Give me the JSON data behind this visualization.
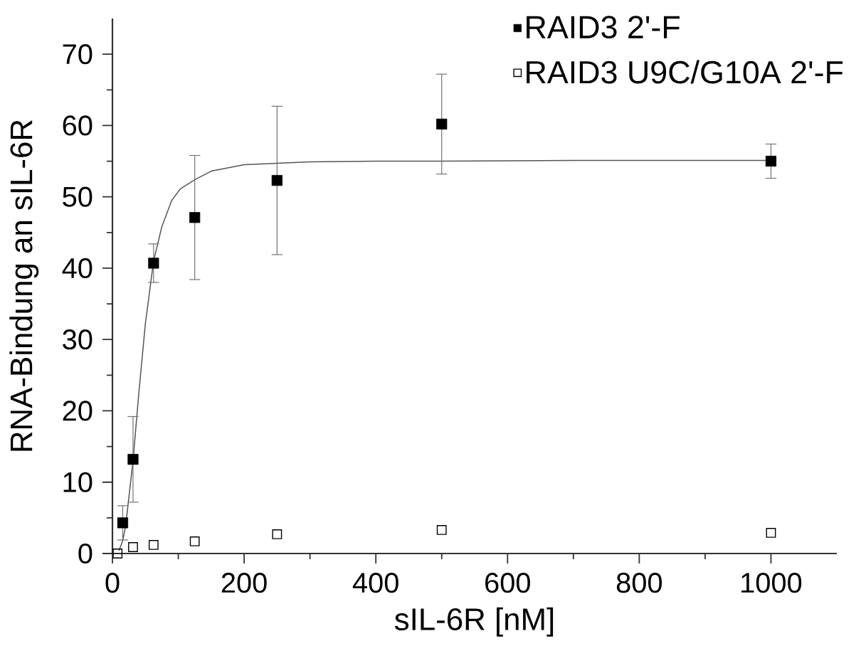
{
  "chart_data": {
    "type": "scatter",
    "xlabel": "sIL-6R [nM]",
    "ylabel": "RNA-Bindung an sIL-6R",
    "xlim": [
      0,
      1100
    ],
    "xticks": [
      0,
      200,
      400,
      600,
      800,
      1000
    ],
    "ylim": [
      0,
      75
    ],
    "yticks": [
      0,
      10,
      20,
      30,
      40,
      50,
      60,
      70
    ],
    "legend": "top right",
    "series": [
      {
        "name": "RAID3 2'-F",
        "color": "#000000",
        "marker": "square",
        "x": [
          15.6,
          31.3,
          62.5,
          125,
          250,
          500,
          1000
        ],
        "values": [
          4.3,
          13.2,
          40.7,
          47.1,
          52.3,
          60.2,
          55.0
        ],
        "errors": [
          2.4,
          6.0,
          2.7,
          8.7,
          10.4,
          7.0,
          2.4
        ]
      },
      {
        "name": "RAID3 U9C/G10A 2'-F",
        "color": "#000000",
        "marker": "square",
        "x": [
          7.8,
          31.3,
          62.5,
          125,
          250,
          500,
          1000
        ],
        "values": [
          0.0,
          0.9,
          1.2,
          1.7,
          2.7,
          3.3,
          2.9
        ]
      },
      {
        "type": "line",
        "color": "#555555",
        "marker": "none",
        "x": [
          10,
          15.6,
          20,
          31.3,
          40,
          50,
          62.5,
          75,
          90,
          103,
          125,
          150,
          200,
          250,
          300,
          400,
          500,
          700,
          1000
        ],
        "values": [
          0.4,
          1.8,
          3.8,
          13.0,
          22.4,
          32.2,
          41.0,
          45.8,
          49.5,
          51.1,
          52.4,
          53.6,
          54.5,
          54.7,
          54.9,
          55.0,
          55.0,
          55.1,
          55.1
        ]
      }
    ]
  }
}
